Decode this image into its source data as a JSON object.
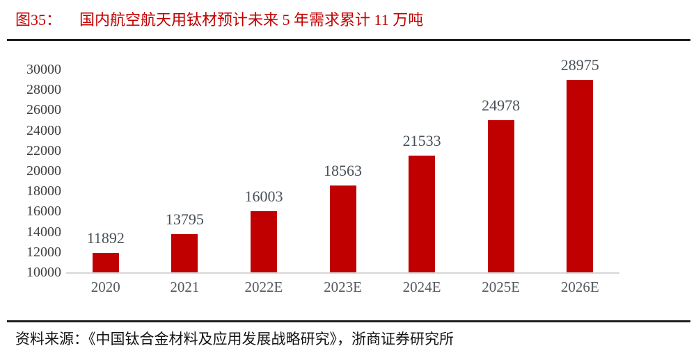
{
  "figure": {
    "label": "图35：",
    "title": "国内航空航天用钛材预计未来 5 年需求累计 11 万吨"
  },
  "chart_data": {
    "type": "bar",
    "title": "国内航空航天用钛材预计未来 5 年需求累计 11 万吨",
    "categories": [
      "2020",
      "2021",
      "2022E",
      "2023E",
      "2024E",
      "2025E",
      "2026E"
    ],
    "values": [
      11892,
      13795,
      16003,
      18563,
      21533,
      24978,
      28975
    ],
    "xlabel": "",
    "ylabel": "",
    "ylim": [
      10000,
      30000
    ],
    "yticks": [
      30000,
      28000,
      26000,
      24000,
      22000,
      20000,
      18000,
      16000,
      14000,
      12000,
      10000
    ],
    "grid": false,
    "legend": "none",
    "data_labels": true,
    "bar_color": "#c00000"
  },
  "footer": {
    "source": "资料来源：《中国钛合金材料及应用发展战略研究》，浙商证券研究所"
  },
  "colors": {
    "title": "#c00000",
    "bar": "#c00000",
    "y_tick_label": "#3f3f3f",
    "x_tick_label": "#55595e",
    "value_label": "#474f58",
    "baseline": "#d6d6d6",
    "rule": "#1f1f1f"
  }
}
